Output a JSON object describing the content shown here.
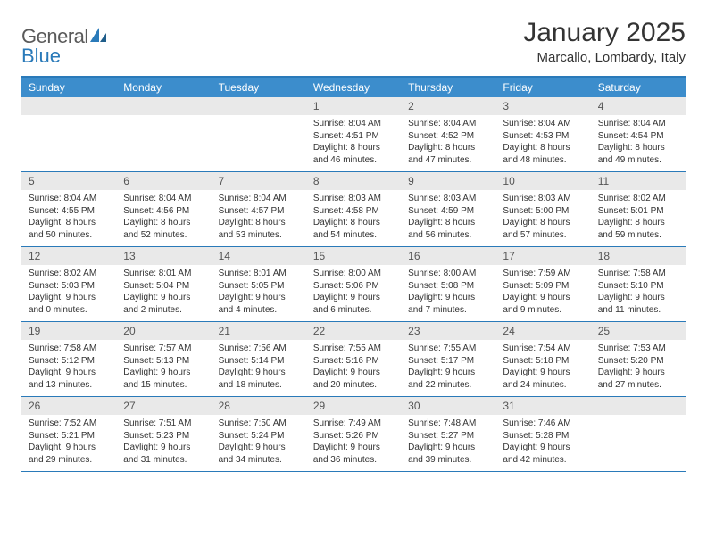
{
  "logo": {
    "text1": "General",
    "text2": "Blue"
  },
  "title": "January 2025",
  "location": "Marcallo, Lombardy, Italy",
  "colors": {
    "header_bar": "#3c8dcc",
    "accent_border": "#2a7ab9",
    "daynum_bg": "#e9e9e9",
    "text": "#333333",
    "page_bg": "#ffffff"
  },
  "daynames": [
    "Sunday",
    "Monday",
    "Tuesday",
    "Wednesday",
    "Thursday",
    "Friday",
    "Saturday"
  ],
  "weeks": [
    [
      {
        "n": "",
        "sr": "",
        "ss": "",
        "dl": ""
      },
      {
        "n": "",
        "sr": "",
        "ss": "",
        "dl": ""
      },
      {
        "n": "",
        "sr": "",
        "ss": "",
        "dl": ""
      },
      {
        "n": "1",
        "sr": "Sunrise: 8:04 AM",
        "ss": "Sunset: 4:51 PM",
        "dl": "Daylight: 8 hours and 46 minutes."
      },
      {
        "n": "2",
        "sr": "Sunrise: 8:04 AM",
        "ss": "Sunset: 4:52 PM",
        "dl": "Daylight: 8 hours and 47 minutes."
      },
      {
        "n": "3",
        "sr": "Sunrise: 8:04 AM",
        "ss": "Sunset: 4:53 PM",
        "dl": "Daylight: 8 hours and 48 minutes."
      },
      {
        "n": "4",
        "sr": "Sunrise: 8:04 AM",
        "ss": "Sunset: 4:54 PM",
        "dl": "Daylight: 8 hours and 49 minutes."
      }
    ],
    [
      {
        "n": "5",
        "sr": "Sunrise: 8:04 AM",
        "ss": "Sunset: 4:55 PM",
        "dl": "Daylight: 8 hours and 50 minutes."
      },
      {
        "n": "6",
        "sr": "Sunrise: 8:04 AM",
        "ss": "Sunset: 4:56 PM",
        "dl": "Daylight: 8 hours and 52 minutes."
      },
      {
        "n": "7",
        "sr": "Sunrise: 8:04 AM",
        "ss": "Sunset: 4:57 PM",
        "dl": "Daylight: 8 hours and 53 minutes."
      },
      {
        "n": "8",
        "sr": "Sunrise: 8:03 AM",
        "ss": "Sunset: 4:58 PM",
        "dl": "Daylight: 8 hours and 54 minutes."
      },
      {
        "n": "9",
        "sr": "Sunrise: 8:03 AM",
        "ss": "Sunset: 4:59 PM",
        "dl": "Daylight: 8 hours and 56 minutes."
      },
      {
        "n": "10",
        "sr": "Sunrise: 8:03 AM",
        "ss": "Sunset: 5:00 PM",
        "dl": "Daylight: 8 hours and 57 minutes."
      },
      {
        "n": "11",
        "sr": "Sunrise: 8:02 AM",
        "ss": "Sunset: 5:01 PM",
        "dl": "Daylight: 8 hours and 59 minutes."
      }
    ],
    [
      {
        "n": "12",
        "sr": "Sunrise: 8:02 AM",
        "ss": "Sunset: 5:03 PM",
        "dl": "Daylight: 9 hours and 0 minutes."
      },
      {
        "n": "13",
        "sr": "Sunrise: 8:01 AM",
        "ss": "Sunset: 5:04 PM",
        "dl": "Daylight: 9 hours and 2 minutes."
      },
      {
        "n": "14",
        "sr": "Sunrise: 8:01 AM",
        "ss": "Sunset: 5:05 PM",
        "dl": "Daylight: 9 hours and 4 minutes."
      },
      {
        "n": "15",
        "sr": "Sunrise: 8:00 AM",
        "ss": "Sunset: 5:06 PM",
        "dl": "Daylight: 9 hours and 6 minutes."
      },
      {
        "n": "16",
        "sr": "Sunrise: 8:00 AM",
        "ss": "Sunset: 5:08 PM",
        "dl": "Daylight: 9 hours and 7 minutes."
      },
      {
        "n": "17",
        "sr": "Sunrise: 7:59 AM",
        "ss": "Sunset: 5:09 PM",
        "dl": "Daylight: 9 hours and 9 minutes."
      },
      {
        "n": "18",
        "sr": "Sunrise: 7:58 AM",
        "ss": "Sunset: 5:10 PM",
        "dl": "Daylight: 9 hours and 11 minutes."
      }
    ],
    [
      {
        "n": "19",
        "sr": "Sunrise: 7:58 AM",
        "ss": "Sunset: 5:12 PM",
        "dl": "Daylight: 9 hours and 13 minutes."
      },
      {
        "n": "20",
        "sr": "Sunrise: 7:57 AM",
        "ss": "Sunset: 5:13 PM",
        "dl": "Daylight: 9 hours and 15 minutes."
      },
      {
        "n": "21",
        "sr": "Sunrise: 7:56 AM",
        "ss": "Sunset: 5:14 PM",
        "dl": "Daylight: 9 hours and 18 minutes."
      },
      {
        "n": "22",
        "sr": "Sunrise: 7:55 AM",
        "ss": "Sunset: 5:16 PM",
        "dl": "Daylight: 9 hours and 20 minutes."
      },
      {
        "n": "23",
        "sr": "Sunrise: 7:55 AM",
        "ss": "Sunset: 5:17 PM",
        "dl": "Daylight: 9 hours and 22 minutes."
      },
      {
        "n": "24",
        "sr": "Sunrise: 7:54 AM",
        "ss": "Sunset: 5:18 PM",
        "dl": "Daylight: 9 hours and 24 minutes."
      },
      {
        "n": "25",
        "sr": "Sunrise: 7:53 AM",
        "ss": "Sunset: 5:20 PM",
        "dl": "Daylight: 9 hours and 27 minutes."
      }
    ],
    [
      {
        "n": "26",
        "sr": "Sunrise: 7:52 AM",
        "ss": "Sunset: 5:21 PM",
        "dl": "Daylight: 9 hours and 29 minutes."
      },
      {
        "n": "27",
        "sr": "Sunrise: 7:51 AM",
        "ss": "Sunset: 5:23 PM",
        "dl": "Daylight: 9 hours and 31 minutes."
      },
      {
        "n": "28",
        "sr": "Sunrise: 7:50 AM",
        "ss": "Sunset: 5:24 PM",
        "dl": "Daylight: 9 hours and 34 minutes."
      },
      {
        "n": "29",
        "sr": "Sunrise: 7:49 AM",
        "ss": "Sunset: 5:26 PM",
        "dl": "Daylight: 9 hours and 36 minutes."
      },
      {
        "n": "30",
        "sr": "Sunrise: 7:48 AM",
        "ss": "Sunset: 5:27 PM",
        "dl": "Daylight: 9 hours and 39 minutes."
      },
      {
        "n": "31",
        "sr": "Sunrise: 7:46 AM",
        "ss": "Sunset: 5:28 PM",
        "dl": "Daylight: 9 hours and 42 minutes."
      },
      {
        "n": "",
        "sr": "",
        "ss": "",
        "dl": ""
      }
    ]
  ]
}
